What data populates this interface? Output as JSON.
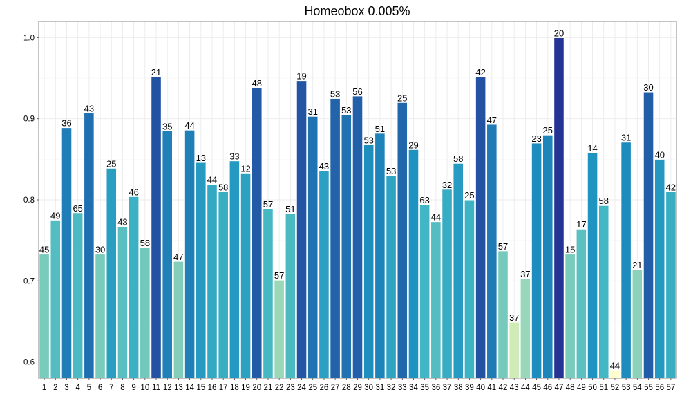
{
  "chart_data": {
    "type": "bar",
    "title": "Homeobox 0.005%",
    "xlabel": "",
    "ylabel": "",
    "ylim": [
      0.58,
      1.02
    ],
    "yticks": [
      0.6,
      0.7,
      0.8,
      0.9,
      1.0
    ],
    "ytick_labels": [
      "0.6",
      "0.7",
      "0.8",
      "0.9",
      "1.0"
    ],
    "grid": true,
    "categories": [
      "1",
      "2",
      "3",
      "4",
      "5",
      "6",
      "7",
      "8",
      "9",
      "10",
      "11",
      "12",
      "13",
      "14",
      "15",
      "16",
      "17",
      "18",
      "19",
      "20",
      "21",
      "22",
      "23",
      "24",
      "25",
      "26",
      "27",
      "28",
      "29",
      "30",
      "31",
      "32",
      "33",
      "34",
      "35",
      "36",
      "37",
      "38",
      "39",
      "40",
      "41",
      "42",
      "43",
      "44",
      "45",
      "46",
      "47",
      "48",
      "49",
      "50",
      "51",
      "52",
      "53",
      "54",
      "55",
      "56",
      "57"
    ],
    "values": [
      0.733,
      0.775,
      0.889,
      0.784,
      0.907,
      0.733,
      0.839,
      0.767,
      0.804,
      0.741,
      0.952,
      0.885,
      0.724,
      0.886,
      0.846,
      0.819,
      0.81,
      0.848,
      0.833,
      0.938,
      0.789,
      0.701,
      0.783,
      0.947,
      0.903,
      0.836,
      0.925,
      0.905,
      0.928,
      0.868,
      0.882,
      0.83,
      0.92,
      0.862,
      0.794,
      0.773,
      0.813,
      0.845,
      0.8,
      0.952,
      0.893,
      0.737,
      0.649,
      0.703,
      0.87,
      0.88,
      1.0,
      0.733,
      0.764,
      0.858,
      0.793,
      0.59,
      0.871,
      0.714,
      0.933,
      0.85,
      0.81
    ],
    "labels": [
      "45",
      "49",
      "36",
      "65",
      "43",
      "30",
      "25",
      "43",
      "46",
      "58",
      "21",
      "35",
      "47",
      "44",
      "13",
      "44",
      "58",
      "33",
      "12",
      "48",
      "57",
      "57",
      "51",
      "19",
      "31",
      "43",
      "53",
      "53",
      "56",
      "53",
      "51",
      "53",
      "25",
      "29",
      "63",
      "44",
      "32",
      "58",
      "25",
      "42",
      "47",
      "57",
      "37",
      "37",
      "23",
      "25",
      "20",
      "15",
      "17",
      "14",
      "58",
      "44",
      "31",
      "21",
      "30",
      "40",
      "42"
    ],
    "colors": {
      "min": "#ffffcc",
      "stops": [
        "#ffffcc",
        "#c7e9b4",
        "#7fcdbb",
        "#41b6c4",
        "#1d91c0",
        "#225ea8",
        "#253494"
      ]
    }
  }
}
